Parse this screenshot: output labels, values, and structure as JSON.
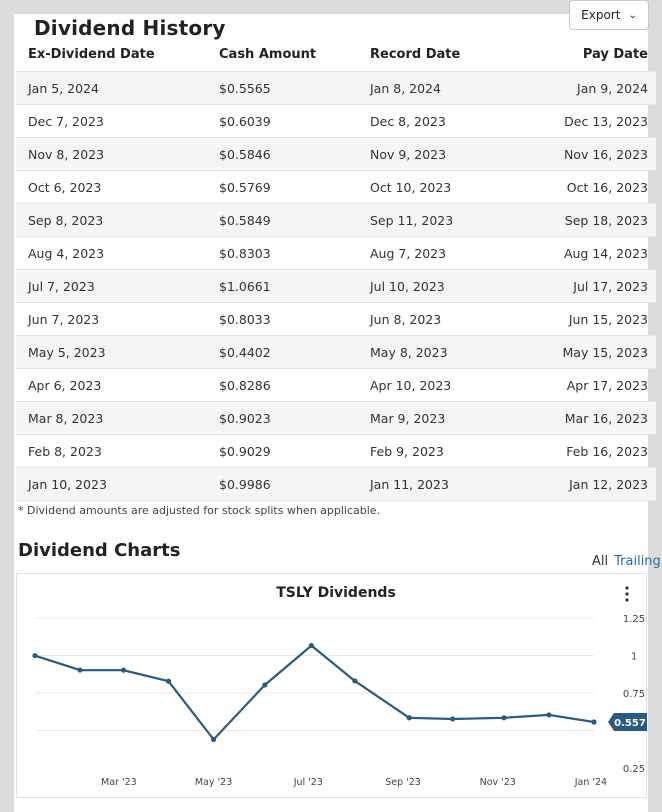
{
  "history": {
    "title": "Dividend History",
    "export_label": "Export",
    "columns": [
      "Ex-Dividend Date",
      "Cash Amount",
      "Record Date",
      "Pay Date"
    ],
    "rows": [
      [
        "Jan 5, 2024",
        "$0.5565",
        "Jan 8, 2024",
        "Jan 9, 2024"
      ],
      [
        "Dec 7, 2023",
        "$0.6039",
        "Dec 8, 2023",
        "Dec 13, 2023"
      ],
      [
        "Nov 8, 2023",
        "$0.5846",
        "Nov 9, 2023",
        "Nov 16, 2023"
      ],
      [
        "Oct 6, 2023",
        "$0.5769",
        "Oct 10, 2023",
        "Oct 16, 2023"
      ],
      [
        "Sep 8, 2023",
        "$0.5849",
        "Sep 11, 2023",
        "Sep 18, 2023"
      ],
      [
        "Aug 4, 2023",
        "$0.8303",
        "Aug 7, 2023",
        "Aug 14, 2023"
      ],
      [
        "Jul 7, 2023",
        "$1.0661",
        "Jul 10, 2023",
        "Jul 17, 2023"
      ],
      [
        "Jun 7, 2023",
        "$0.8033",
        "Jun 8, 2023",
        "Jun 15, 2023"
      ],
      [
        "May 5, 2023",
        "$0.4402",
        "May 8, 2023",
        "May 15, 2023"
      ],
      [
        "Apr 6, 2023",
        "$0.8286",
        "Apr 10, 2023",
        "Apr 17, 2023"
      ],
      [
        "Mar 8, 2023",
        "$0.9023",
        "Mar 9, 2023",
        "Mar 16, 2023"
      ],
      [
        "Feb 8, 2023",
        "$0.9029",
        "Feb 9, 2023",
        "Feb 16, 2023"
      ],
      [
        "Jan 10, 2023",
        "$0.9986",
        "Jan 11, 2023",
        "Jan 12, 2023"
      ]
    ],
    "footnote": "* Dividend amounts are adjusted for stock splits when applicable."
  },
  "charts": {
    "title": "Dividend Charts",
    "range_all": "All",
    "range_trailing": "Trailing",
    "menu_icon": "vertical-ellipsis-icon"
  },
  "chart_data": {
    "type": "line",
    "title": "TSLY Dividends",
    "x": [
      "Jan 10, 2023",
      "Feb 8, 2023",
      "Mar 8, 2023",
      "Apr 6, 2023",
      "May 5, 2023",
      "Jun 7, 2023",
      "Jul 7, 2023",
      "Aug 4, 2023",
      "Sep 8, 2023",
      "Oct 6, 2023",
      "Nov 8, 2023",
      "Dec 7, 2023",
      "Jan 5, 2024"
    ],
    "x_days": [
      0,
      29,
      57,
      86,
      115,
      148,
      178,
      206,
      241,
      269,
      302,
      331,
      360
    ],
    "values": [
      0.9986,
      0.9029,
      0.9023,
      0.8286,
      0.4402,
      0.8033,
      1.0661,
      0.8303,
      0.5849,
      0.5769,
      0.5846,
      0.6039,
      0.5565
    ],
    "x_ticks": [
      {
        "label": "Mar '23",
        "day": 54
      },
      {
        "label": "May '23",
        "day": 115
      },
      {
        "label": "Jul '23",
        "day": 176
      },
      {
        "label": "Sep '23",
        "day": 237
      },
      {
        "label": "Nov '23",
        "day": 298
      },
      {
        "label": "Jan '24",
        "day": 358
      }
    ],
    "y_ticks": [
      {
        "label": "1.25",
        "value": 1.25
      },
      {
        "label": "1",
        "value": 1.0
      },
      {
        "label": "0.75",
        "value": 0.75
      },
      {
        "label": "0.25",
        "value": 0.25
      }
    ],
    "ylim": [
      0.25,
      1.25
    ],
    "last_value_label": "0.557",
    "colors": {
      "line": "#2b5b80",
      "grid": "#e8e8e8",
      "label_bg": "#2b5b80"
    }
  }
}
